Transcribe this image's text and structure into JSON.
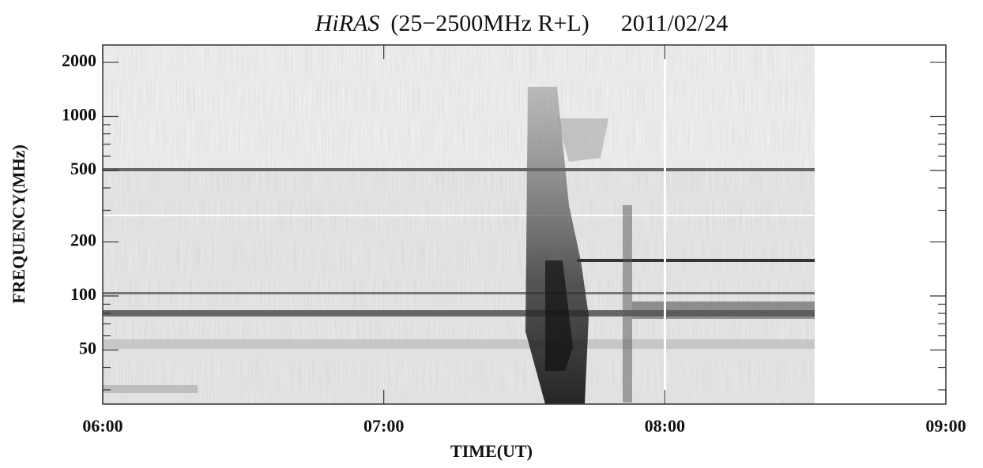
{
  "chart_data": {
    "type": "spectrogram",
    "title": {
      "instrument": "HiRAS",
      "band": "(25−2500MHz R+L)",
      "date": "2011/02/24"
    },
    "x_label": "TIME(UT)",
    "y_label": "FREQUENCY(MHz)",
    "xlim": [
      6,
      9
    ],
    "xticks": [
      {
        "value": 6,
        "label": "06:00"
      },
      {
        "value": 7,
        "label": "07:00"
      },
      {
        "value": 8,
        "label": "08:00"
      },
      {
        "value": 9,
        "label": "09:00"
      }
    ],
    "ylim": [
      25,
      2500
    ],
    "yscale": "log",
    "yticks": [
      50,
      100,
      200,
      500,
      1000,
      2000
    ],
    "yminorticks": [
      30,
      40,
      60,
      70,
      80,
      90,
      300,
      400,
      600,
      700,
      800,
      900
    ]
  }
}
